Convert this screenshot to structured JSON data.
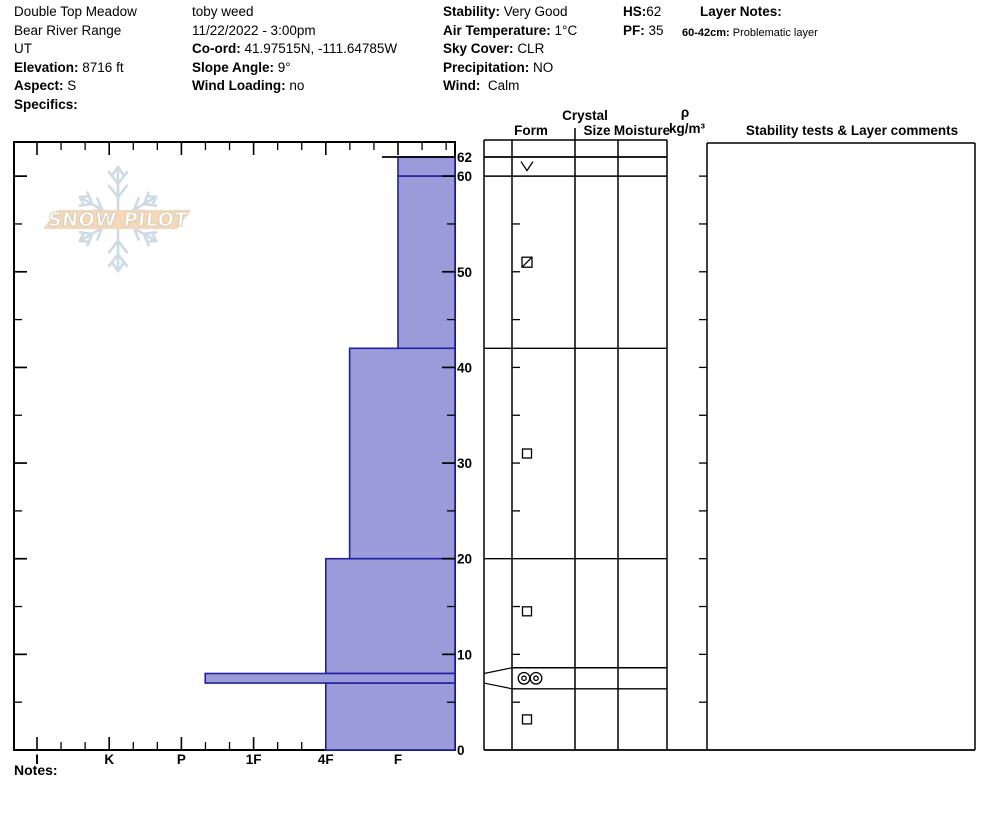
{
  "site": {
    "name": "Double Top Meadow",
    "range": "Bear River Range",
    "state": "UT",
    "elevation_label": "Elevation:",
    "elevation": "8716 ft",
    "aspect_label": "Aspect:",
    "aspect": "S",
    "specifics_label": "Specifics:"
  },
  "observer": {
    "name": "toby weed",
    "datetime": "11/22/2022 - 3:00pm",
    "coord_label": "Co-ord:",
    "coord": "41.97515N, -111.64785W",
    "slope_label": "Slope Angle:",
    "slope": "9°",
    "wind_loading_label": "Wind Loading:",
    "wind_loading": "no"
  },
  "conditions": {
    "stability_label": "Stability:",
    "stability": "Very Good",
    "air_temp_label": "Air Temperature:",
    "air_temp": "1°C",
    "sky_label": "Sky Cover:",
    "sky": "CLR",
    "precip_label": "Precipitation:",
    "precip": "NO",
    "wind_label": "Wind:",
    "wind": "Calm"
  },
  "totals": {
    "hs_label": "HS:",
    "hs": "62",
    "pf_label": "PF:",
    "pf": "35"
  },
  "layer_notes": {
    "title": "Layer Notes:",
    "note_range": "60-42cm:",
    "note_text": "Problematic layer"
  },
  "watermark": {
    "text": "SNOW PILOT"
  },
  "table_headers": {
    "crystal": "Crystal",
    "form": "Form",
    "size": "Size",
    "moisture": "Moisture",
    "rho": "ρ",
    "rho_units": "kg/m³",
    "stability": "Stability tests & Layer comments"
  },
  "notes_label": "Notes:",
  "chart_data": {
    "type": "bar",
    "subtype": "snow-pit-hardness-profile",
    "depth_unit": "cm",
    "hs_total_cm": 62,
    "pit_floor_cm": 35,
    "hardness_categories": [
      "I",
      "K",
      "P",
      "1F",
      "4F",
      "F"
    ],
    "depth_tick_labels": [
      62,
      60,
      50,
      40,
      30,
      20,
      10,
      0
    ],
    "minor_depth_tick_cm": 5,
    "grid": "off",
    "layers": [
      {
        "top_cm": 62,
        "bottom_cm": 60,
        "hardness": "F",
        "hardness_num": 1.0,
        "grain_form": "surface hoar",
        "symbol": "SH",
        "symbol_depth_cm": 61
      },
      {
        "top_cm": 60,
        "bottom_cm": 42,
        "hardness": "F",
        "hardness_num": 1.0,
        "grain_form": "rounding facets",
        "symbol": "FCxr",
        "symbol_depth_cm": 51,
        "comment": "Problematic layer"
      },
      {
        "top_cm": 42,
        "bottom_cm": 20,
        "hardness": "4F-",
        "hardness_num": 1.67,
        "grain_form": "facets",
        "symbol": "FC",
        "symbol_depth_cm": 31
      },
      {
        "top_cm": 20,
        "bottom_cm": 8,
        "hardness": "4F",
        "hardness_num": 2.0,
        "grain_form": "facets",
        "symbol": "FC",
        "symbol_depth_cm": 14.5
      },
      {
        "top_cm": 8,
        "bottom_cm": 7,
        "hardness": "P-",
        "hardness_num": 3.67,
        "grain_form": "melt-freeze crust",
        "symbol": "MFcr",
        "symbol_depth_cm": 7.5,
        "thin": true,
        "display_top_cm": 8.6,
        "display_bottom_cm": 6.4
      },
      {
        "top_cm": 7,
        "bottom_cm": 0,
        "hardness": "4F",
        "hardness_num": 2.0,
        "grain_form": "facets",
        "symbol": "FC",
        "symbol_depth_cm": 3.2
      }
    ],
    "density_values": [],
    "stability_tests": [],
    "colors": {
      "bar_fill": "#9b9bd9",
      "bar_stroke": "#2121a3",
      "axis": "#000000",
      "logo_banner": "#f2cfa6",
      "logo_flake": "#c3d2de",
      "logo_text_outline": "#cfc0ab"
    }
  }
}
